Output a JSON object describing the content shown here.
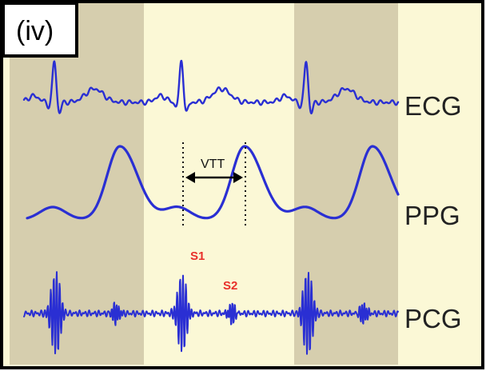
{
  "panel": {
    "label": "(iv)"
  },
  "colors": {
    "band_dark": "#d6ceae",
    "band_light": "#fbf8d6",
    "waveform": "#2a2fd3",
    "sound_label": "#e8302a",
    "frame": "#000000"
  },
  "traces": {
    "ecg": {
      "label": "ECG"
    },
    "ppg": {
      "label": "PPG"
    },
    "pcg": {
      "label": "PCG"
    }
  },
  "annotations": {
    "vtt": "VTT",
    "s1": "S1",
    "s2": "S2"
  },
  "icons": {
    "vtt_arrow": "double-headed-arrow",
    "markers": "dotted-vertical-line"
  }
}
